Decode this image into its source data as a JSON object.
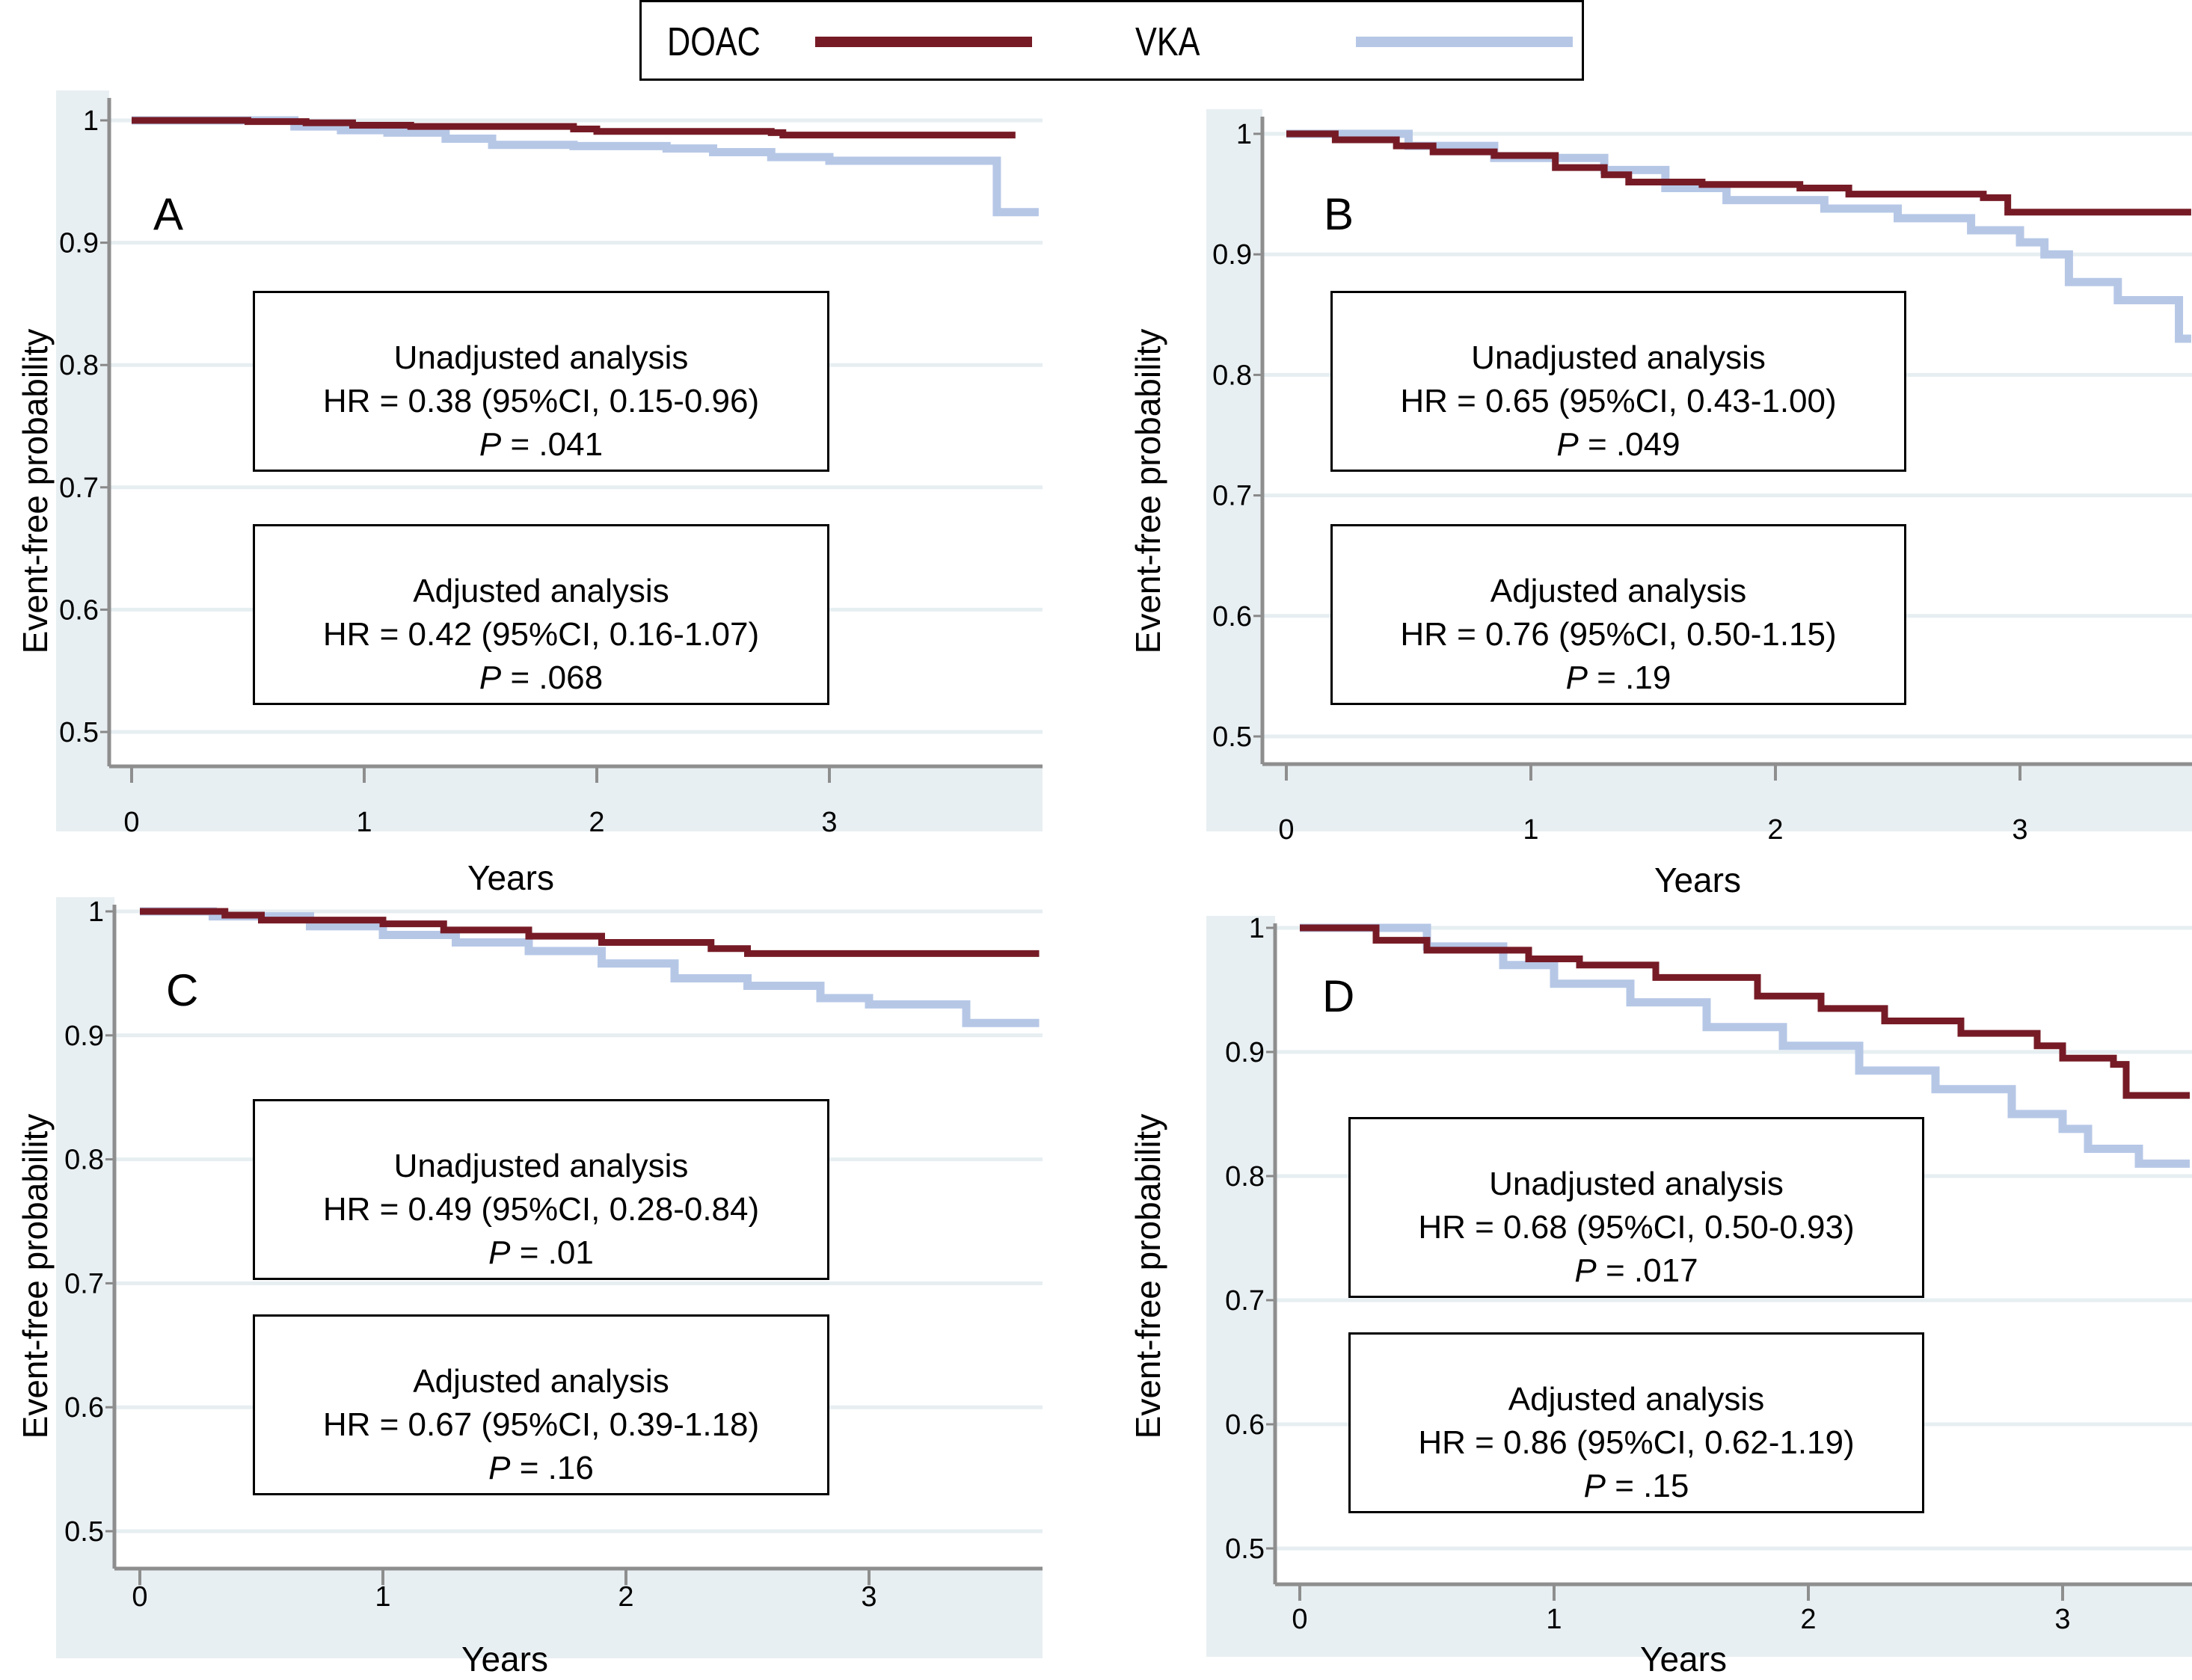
{
  "legend": {
    "items": [
      {
        "label": "DOAC",
        "color": "#761b26"
      },
      {
        "label": "VKA",
        "color": "#b6c7e6"
      }
    ]
  },
  "chart_data": [
    {
      "type": "line",
      "panel": "A",
      "xlabel": "Years",
      "ylabel": "Event-free probability",
      "x_ticks": [
        "0",
        "1",
        "2",
        "3"
      ],
      "y_ticks": [
        "0.5",
        "0.6",
        "0.7",
        "0.8",
        "0.9",
        "1"
      ],
      "xlim": [
        0,
        3.9
      ],
      "ylim": [
        0.5,
        1.0
      ],
      "grid": true,
      "series": [
        {
          "name": "DOAC",
          "step": true,
          "x": [
            0,
            0.5,
            0.75,
            0.95,
            1.2,
            1.9,
            2.0,
            2.75,
            2.8,
            3.8
          ],
          "y": [
            1.0,
            0.999,
            0.998,
            0.996,
            0.995,
            0.993,
            0.991,
            0.99,
            0.988,
            0.988
          ]
        },
        {
          "name": "VKA",
          "step": true,
          "x": [
            0,
            0.7,
            0.9,
            1.1,
            1.35,
            1.55,
            1.9,
            2.3,
            2.5,
            2.75,
            3.0,
            3.7,
            3.72,
            3.9
          ],
          "y": [
            1.0,
            0.995,
            0.992,
            0.99,
            0.985,
            0.98,
            0.979,
            0.977,
            0.974,
            0.97,
            0.967,
            0.967,
            0.925,
            0.925
          ]
        }
      ],
      "annotations": {
        "unadjusted": {
          "title": "Unadjusted analysis",
          "hr": "HR = 0.38 (95%CI, 0.15-0.96)",
          "p_label": "P",
          "p_value": " = .041"
        },
        "adjusted": {
          "title": "Adjusted analysis",
          "hr": "HR = 0.42 (95%CI, 0.16-1.07)",
          "p_label": "P",
          "p_value": " = .068"
        }
      }
    },
    {
      "type": "line",
      "panel": "B",
      "xlabel": "Years",
      "ylabel": "Event-free probability",
      "x_ticks": [
        "0",
        "1",
        "2",
        "3"
      ],
      "y_ticks": [
        "0.5",
        "0.6",
        "0.7",
        "0.8",
        "0.9",
        "1"
      ],
      "xlim": [
        0,
        3.7
      ],
      "ylim": [
        0.5,
        1.0
      ],
      "grid": true,
      "series": [
        {
          "name": "DOAC",
          "step": true,
          "x": [
            0,
            0.2,
            0.45,
            0.6,
            0.85,
            1.1,
            1.3,
            1.4,
            1.7,
            2.1,
            2.3,
            2.85,
            2.95,
            3.7
          ],
          "y": [
            1.0,
            0.995,
            0.99,
            0.985,
            0.982,
            0.972,
            0.966,
            0.96,
            0.958,
            0.955,
            0.95,
            0.947,
            0.935,
            0.935
          ]
        },
        {
          "name": "VKA",
          "step": true,
          "x": [
            0,
            0.5,
            0.85,
            1.3,
            1.55,
            1.8,
            2.2,
            2.5,
            2.8,
            3.0,
            3.1,
            3.2,
            3.4,
            3.6,
            3.65,
            3.7
          ],
          "y": [
            1.0,
            0.99,
            0.98,
            0.97,
            0.955,
            0.945,
            0.938,
            0.93,
            0.92,
            0.91,
            0.9,
            0.877,
            0.862,
            0.862,
            0.83,
            0.83
          ]
        }
      ],
      "annotations": {
        "unadjusted": {
          "title": "Unadjusted analysis",
          "hr": "HR = 0.65 (95%CI, 0.43-1.00)",
          "p_label": "P",
          "p_value": " = .049"
        },
        "adjusted": {
          "title": "Adjusted analysis",
          "hr": "HR = 0.76 (95%CI, 0.50-1.15)",
          "p_label": "P",
          "p_value": " = .19"
        }
      }
    },
    {
      "type": "line",
      "panel": "C",
      "xlabel": "Years",
      "ylabel": "Event-free probability",
      "x_ticks": [
        "0",
        "1",
        "2",
        "3"
      ],
      "y_ticks": [
        "0.5",
        "0.6",
        "0.7",
        "0.8",
        "0.9",
        "1"
      ],
      "xlim": [
        0,
        3.7
      ],
      "ylim": [
        0.5,
        1.0
      ],
      "grid": true,
      "series": [
        {
          "name": "DOAC",
          "step": true,
          "x": [
            0,
            0.35,
            0.5,
            1.0,
            1.25,
            1.6,
            1.9,
            2.35,
            2.5,
            3.7
          ],
          "y": [
            1.0,
            0.997,
            0.993,
            0.99,
            0.985,
            0.98,
            0.975,
            0.97,
            0.966,
            0.966
          ]
        },
        {
          "name": "VKA",
          "step": true,
          "x": [
            0,
            0.3,
            0.7,
            1.0,
            1.3,
            1.6,
            1.9,
            2.2,
            2.5,
            2.8,
            3.0,
            3.35,
            3.4,
            3.7
          ],
          "y": [
            1.0,
            0.996,
            0.988,
            0.981,
            0.975,
            0.968,
            0.958,
            0.946,
            0.94,
            0.93,
            0.925,
            0.925,
            0.91,
            0.91
          ]
        }
      ],
      "annotations": {
        "unadjusted": {
          "title": "Unadjusted analysis",
          "hr": "HR = 0.49 (95%CI, 0.28-0.84)",
          "p_label": "P",
          "p_value": " = .01"
        },
        "adjusted": {
          "title": "Adjusted analysis",
          "hr": "HR = 0.67 (95%CI, 0.39-1.18)",
          "p_label": "P",
          "p_value": " = .16"
        }
      }
    },
    {
      "type": "line",
      "panel": "D",
      "xlabel": "Years",
      "ylabel": "Event-free probability",
      "x_ticks": [
        "0",
        "1",
        "2",
        "3"
      ],
      "y_ticks": [
        "0.5",
        "0.6",
        "0.7",
        "0.8",
        "0.9",
        "1"
      ],
      "xlim": [
        0,
        3.5
      ],
      "ylim": [
        0.5,
        1.0
      ],
      "grid": true,
      "series": [
        {
          "name": "DOAC",
          "step": true,
          "x": [
            0,
            0.3,
            0.5,
            0.9,
            1.1,
            1.4,
            1.8,
            2.05,
            2.3,
            2.6,
            2.9,
            3.0,
            3.2,
            3.25,
            3.5
          ],
          "y": [
            1.0,
            0.99,
            0.982,
            0.975,
            0.97,
            0.96,
            0.945,
            0.935,
            0.925,
            0.915,
            0.905,
            0.895,
            0.89,
            0.865,
            0.865
          ]
        },
        {
          "name": "VKA",
          "step": true,
          "x": [
            0,
            0.5,
            0.8,
            1.0,
            1.3,
            1.6,
            1.9,
            2.2,
            2.5,
            2.8,
            3.0,
            3.1,
            3.25,
            3.3,
            3.5
          ],
          "y": [
            1.0,
            0.985,
            0.97,
            0.955,
            0.94,
            0.92,
            0.905,
            0.885,
            0.87,
            0.85,
            0.838,
            0.822,
            0.822,
            0.81,
            0.81
          ]
        }
      ],
      "annotations": {
        "unadjusted": {
          "title": "Unadjusted analysis",
          "hr": "HR = 0.68 (95%CI, 0.50-0.93)",
          "p_label": "P",
          "p_value": " = .017"
        },
        "adjusted": {
          "title": "Adjusted analysis",
          "hr": "HR = 0.86 (95%CI, 0.62-1.19)",
          "p_label": "P",
          "p_value": " = .15"
        }
      }
    }
  ]
}
